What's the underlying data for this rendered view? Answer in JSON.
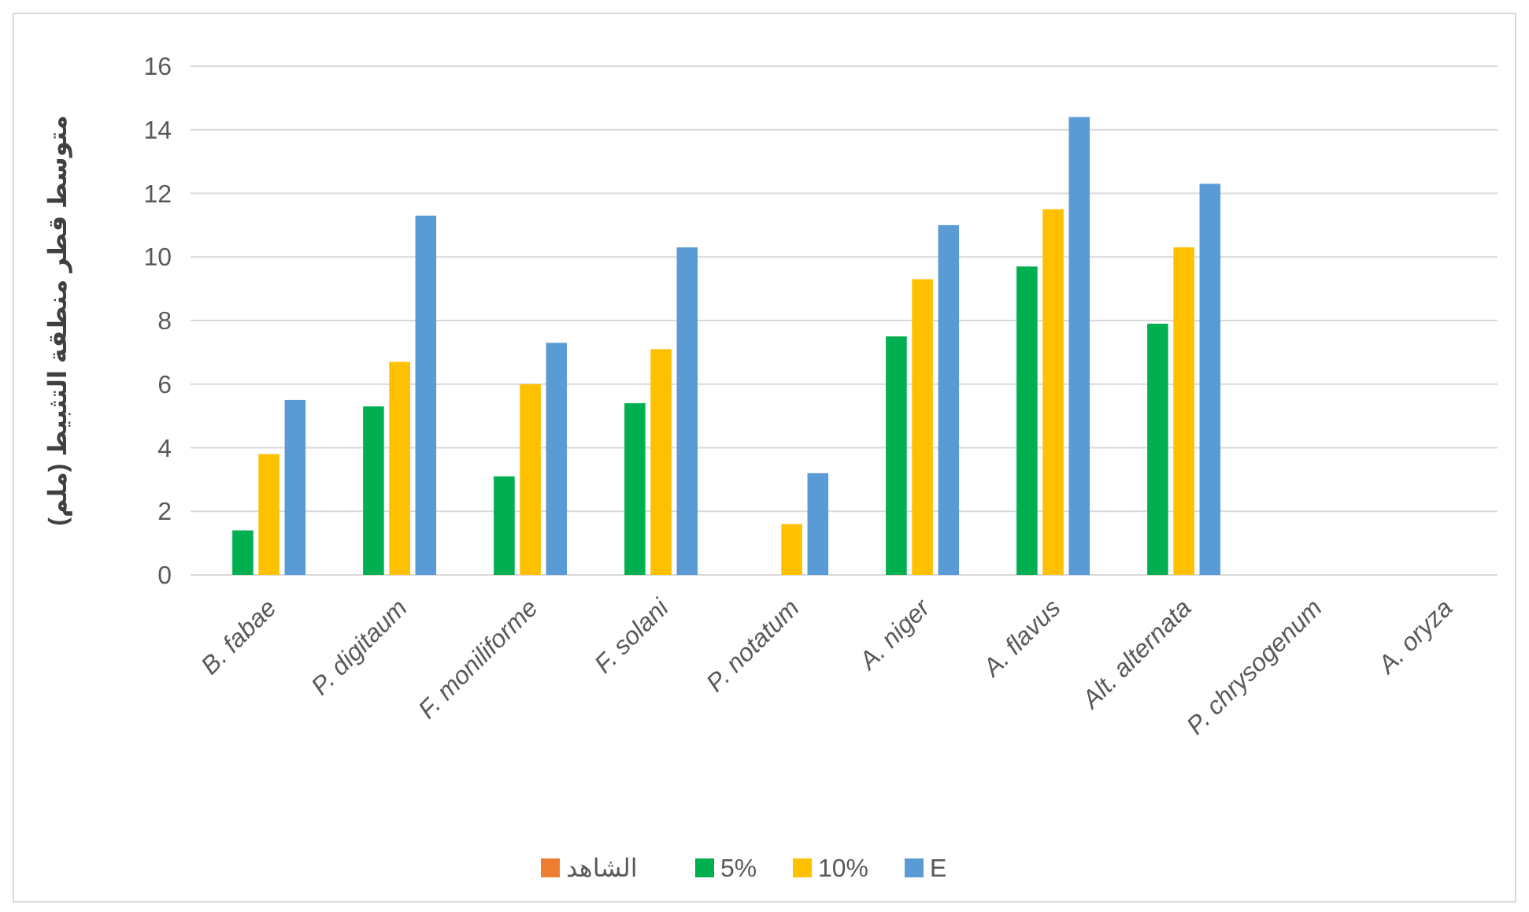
{
  "chart_data": {
    "type": "bar",
    "ylabel": "متوسط قطر منطقة التثبيط (ملم)",
    "categories": [
      "B. fabae",
      "P. digitaum",
      "F. moniliforme",
      "F. solani",
      "P. notatum",
      "A. niger",
      "A. flavus",
      "Alt. alternata",
      "P. chrysogenum",
      "A. oryza"
    ],
    "series": [
      {
        "name": "الشاهد",
        "color": "#ed7d31",
        "values": [
          0,
          0,
          0,
          0,
          0,
          0,
          0,
          0,
          0,
          0
        ]
      },
      {
        "name": "5%",
        "color": "#00b050",
        "values": [
          1.4,
          5.3,
          3.1,
          5.4,
          0,
          7.5,
          9.7,
          7.9,
          0,
          0
        ]
      },
      {
        "name": "10%",
        "color": "#ffc000",
        "values": [
          3.8,
          6.7,
          6.0,
          7.1,
          1.6,
          9.3,
          11.5,
          10.3,
          0,
          0
        ]
      },
      {
        "name": "E",
        "color": "#5b9bd5",
        "values": [
          5.5,
          11.3,
          7.3,
          10.3,
          3.2,
          11.0,
          14.4,
          12.3,
          0,
          0
        ]
      }
    ],
    "ylim": [
      0,
      16
    ],
    "yticks": [
      0,
      2,
      4,
      6,
      8,
      10,
      12,
      14,
      16
    ],
    "grid": "y",
    "legend": "bottom"
  }
}
